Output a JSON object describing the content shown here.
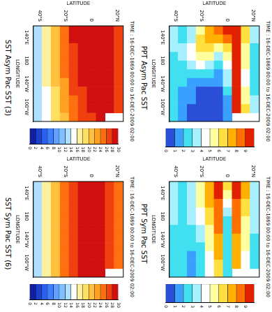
{
  "chart_data": [
    {
      "type": "heatmap",
      "title": "PPT Asym Pac SST",
      "subtitle": "TIME : 16-DEC-1869 00:00 to 16-DEC-2009 02:00",
      "x_label": "LONGITUDE",
      "y_label": "LATITUDE",
      "xlim": [
        120,
        285
      ],
      "ylim": [
        -45,
        25
      ],
      "xticks": [
        {
          "value": 140,
          "label": "140°E"
        },
        180,
        {
          "value": 220,
          "label": "140°W"
        },
        {
          "value": 260,
          "label": "100°W"
        }
      ],
      "yticks": [
        {
          "value": -40,
          "label": "40°S"
        },
        {
          "value": -20,
          "label": "20°S"
        },
        0,
        {
          "value": 20,
          "label": "20°N"
        }
      ],
      "grid": false,
      "x_edges": [
        120,
        135,
        150,
        165,
        180,
        195,
        210,
        225,
        240,
        255,
        270,
        285
      ],
      "y_edges": [
        -45,
        -38,
        -31,
        -24,
        -17,
        -10,
        -3,
        4,
        11,
        18,
        25
      ],
      "cells": [
        [
          3,
          3,
          3,
          2,
          2,
          2,
          2,
          2,
          2,
          2,
          2
        ],
        [
          2,
          2,
          3,
          3,
          2,
          2,
          2,
          1,
          1,
          1,
          1
        ],
        [
          3,
          3,
          4,
          4,
          3,
          2,
          1,
          1,
          1,
          0,
          0
        ],
        [
          5,
          6,
          6,
          5,
          4,
          2,
          1,
          0,
          0,
          0,
          0
        ],
        [
          7,
          7,
          6,
          5,
          3,
          2,
          1,
          0,
          0,
          0,
          0
        ],
        [
          8,
          7,
          5,
          3,
          2,
          1,
          1,
          0,
          0,
          0,
          0
        ],
        [
          9,
          8,
          6,
          5,
          4,
          3,
          3,
          2,
          1,
          1,
          1
        ],
        [
          9,
          9,
          9,
          9,
          9,
          10,
          10,
          10,
          10,
          9,
          null
        ],
        [
          6,
          6,
          5,
          5,
          5,
          4,
          4,
          5,
          5,
          6,
          null
        ],
        [
          3,
          3,
          2,
          2,
          2,
          2,
          2,
          2,
          3,
          3,
          null
        ]
      ],
      "colorbar": {
        "range": [
          0,
          10
        ],
        "ticks": [
          0,
          1,
          2,
          3,
          4,
          5,
          6,
          7,
          8,
          9
        ],
        "colors": [
          "#2a4fd6",
          "#3aa0ff",
          "#40e0f0",
          "#a8f0ff",
          "#ffffff",
          "#ffffa0",
          "#ffe040",
          "#ffb000",
          "#ff7000",
          "#e02000"
        ]
      }
    },
    {
      "type": "heatmap",
      "title": "PPT Sym Pac SST",
      "subtitle": "TIME : 16-DEC-1869 00:00 to 16-DEC-2009 02:00",
      "x_label": "LONGITUDE",
      "y_label": "LATITUDE",
      "xlim": [
        120,
        285
      ],
      "ylim": [
        -45,
        25
      ],
      "xticks": [
        {
          "value": 140,
          "label": "140°E"
        },
        180,
        {
          "value": 220,
          "label": "140°W"
        },
        {
          "value": 260,
          "label": "100°W"
        }
      ],
      "yticks": [
        {
          "value": -40,
          "label": "40°S"
        },
        {
          "value": -20,
          "label": "20°S"
        },
        0,
        {
          "value": 20,
          "label": "20°N"
        }
      ],
      "grid": false,
      "x_edges": [
        120,
        135,
        150,
        165,
        180,
        195,
        210,
        225,
        240,
        255,
        270,
        285
      ],
      "y_edges": [
        -45,
        -38,
        -31,
        -24,
        -17,
        -10,
        -3,
        4,
        11,
        18,
        25
      ],
      "cells": [
        [
          3,
          3,
          3,
          3,
          3,
          2,
          2,
          2,
          2,
          2,
          2
        ],
        [
          2,
          2,
          2,
          2,
          2,
          2,
          2,
          2,
          2,
          2,
          2
        ],
        [
          3,
          3,
          3,
          3,
          3,
          2,
          2,
          2,
          1,
          1,
          1
        ],
        [
          5,
          5,
          5,
          4,
          4,
          3,
          3,
          2,
          2,
          2,
          2
        ],
        [
          7,
          7,
          7,
          6,
          6,
          5,
          5,
          5,
          4,
          4,
          4
        ],
        [
          9,
          9,
          8,
          8,
          8,
          8,
          7,
          7,
          7,
          6,
          6
        ],
        [
          6,
          5,
          4,
          3,
          2,
          2,
          2,
          2,
          2,
          2,
          2
        ],
        [
          9,
          9,
          8,
          8,
          8,
          8,
          7,
          7,
          7,
          7,
          null
        ],
        [
          7,
          7,
          6,
          6,
          5,
          5,
          5,
          5,
          4,
          4,
          null
        ],
        [
          3,
          3,
          3,
          3,
          3,
          3,
          2,
          2,
          2,
          2,
          null
        ]
      ],
      "colorbar": {
        "range": [
          0,
          10
        ],
        "ticks": [
          0,
          1,
          2,
          3,
          4,
          5,
          6,
          7,
          8,
          9
        ],
        "colors": [
          "#2a4fd6",
          "#3aa0ff",
          "#40e0f0",
          "#a8f0ff",
          "#ffffff",
          "#ffffa0",
          "#ffe040",
          "#ffb000",
          "#ff7000",
          "#e02000"
        ]
      }
    },
    {
      "type": "heatmap",
      "title": "SST Asym Pac SST (3)",
      "subtitle": "TIME : 16-DEC-1869 00:00 to 16-DEC-2009 02:00",
      "x_label": "LONGITUDE",
      "y_label": "LATITUDE",
      "xlim": [
        120,
        285
      ],
      "ylim": [
        -45,
        25
      ],
      "xticks": [
        {
          "value": 140,
          "label": "140°E"
        },
        180,
        {
          "value": 220,
          "label": "140°W"
        },
        {
          "value": 260,
          "label": "100°W"
        }
      ],
      "yticks": [
        {
          "value": -40,
          "label": "40°S"
        },
        {
          "value": -20,
          "label": "20°S"
        },
        0,
        {
          "value": 20,
          "label": "20°N"
        }
      ],
      "grid": false,
      "x_edges": [
        120,
        135,
        150,
        165,
        180,
        195,
        210,
        225,
        240,
        255,
        270,
        285
      ],
      "y_edges": [
        -45,
        -38,
        -31,
        -24,
        -17,
        -10,
        -3,
        4,
        11,
        18,
        25
      ],
      "cells": [
        [
          13,
          13,
          12,
          12,
          12,
          12,
          12,
          12,
          12,
          12,
          12
        ],
        [
          17,
          17,
          16,
          16,
          16,
          16,
          16,
          15,
          15,
          15,
          15
        ],
        [
          21,
          21,
          21,
          20,
          20,
          20,
          20,
          19,
          19,
          19,
          18
        ],
        [
          25,
          25,
          24,
          24,
          24,
          24,
          23,
          23,
          22,
          22,
          21
        ],
        [
          28,
          28,
          27,
          27,
          27,
          26,
          26,
          26,
          25,
          25,
          24
        ],
        [
          29,
          29,
          29,
          28,
          28,
          28,
          28,
          27,
          27,
          27,
          26
        ],
        [
          29,
          29,
          29,
          29,
          29,
          29,
          28,
          28,
          28,
          28,
          27
        ],
        [
          29,
          29,
          29,
          29,
          29,
          29,
          29,
          29,
          29,
          29,
          29
        ],
        [
          28,
          28,
          28,
          28,
          28,
          28,
          28,
          28,
          28,
          28,
          null
        ],
        [
          26,
          26,
          26,
          26,
          26,
          26,
          26,
          26,
          26,
          27,
          null
        ]
      ],
      "colorbar": {
        "range": [
          0,
          30
        ],
        "ticks": [
          0,
          2,
          4,
          6,
          8,
          10,
          12,
          14,
          16,
          18,
          20,
          22,
          24,
          26,
          28,
          30
        ],
        "colors": [
          "#1020a0",
          "#1a40d0",
          "#2a60f0",
          "#4080ff",
          "#60a0ff",
          "#80c0ff",
          "#b0e0ff",
          "#ffffff",
          "#fff0a0",
          "#ffe060",
          "#ffc040",
          "#ffa020",
          "#ff7010",
          "#f04010",
          "#d01010"
        ]
      }
    },
    {
      "type": "heatmap",
      "title": "SST Sym Pac SST (6)",
      "subtitle": "TIME : 16-DEC-1869 00:00 to 16-DEC-2009 02:00",
      "x_label": "LONGITUDE",
      "y_label": "LATITUDE",
      "xlim": [
        120,
        285
      ],
      "ylim": [
        -45,
        25
      ],
      "xticks": [
        {
          "value": 140,
          "label": "140°E"
        },
        180,
        {
          "value": 220,
          "label": "140°W"
        },
        {
          "value": 260,
          "label": "100°W"
        }
      ],
      "yticks": [
        {
          "value": -40,
          "label": "40°S"
        },
        {
          "value": -20,
          "label": "20°S"
        },
        0,
        {
          "value": 20,
          "label": "20°N"
        }
      ],
      "grid": false,
      "x_edges": [
        120,
        135,
        150,
        165,
        180,
        195,
        210,
        225,
        240,
        255,
        270,
        285
      ],
      "y_edges": [
        -45,
        -38,
        -31,
        -24,
        -17,
        -10,
        -3,
        4,
        11,
        18,
        25
      ],
      "cells": [
        [
          13,
          13,
          13,
          12,
          12,
          12,
          12,
          12,
          12,
          12,
          12
        ],
        [
          17,
          17,
          17,
          16,
          16,
          16,
          16,
          16,
          16,
          16,
          16
        ],
        [
          21,
          21,
          21,
          21,
          20,
          20,
          20,
          20,
          20,
          20,
          20
        ],
        [
          25,
          25,
          25,
          24,
          24,
          24,
          24,
          24,
          24,
          24,
          24
        ],
        [
          27,
          27,
          27,
          27,
          27,
          27,
          27,
          27,
          27,
          27,
          27
        ],
        [
          28,
          28,
          28,
          28,
          28,
          28,
          28,
          28,
          28,
          28,
          28
        ],
        [
          29,
          29,
          29,
          29,
          29,
          29,
          29,
          29,
          29,
          29,
          28
        ],
        [
          28,
          28,
          28,
          28,
          28,
          28,
          28,
          28,
          28,
          28,
          28
        ],
        [
          27,
          27,
          27,
          27,
          27,
          27,
          27,
          27,
          27,
          27,
          null
        ],
        [
          25,
          25,
          25,
          25,
          25,
          25,
          25,
          25,
          25,
          25,
          null
        ]
      ],
      "colorbar": {
        "range": [
          0,
          30
        ],
        "ticks": [
          0,
          2,
          4,
          6,
          8,
          10,
          12,
          14,
          16,
          18,
          20,
          22,
          24,
          26,
          28,
          30
        ],
        "colors": [
          "#1020a0",
          "#1a40d0",
          "#2a60f0",
          "#4080ff",
          "#60a0ff",
          "#80c0ff",
          "#b0e0ff",
          "#ffffff",
          "#fff0a0",
          "#ffe060",
          "#ffc040",
          "#ffa020",
          "#ff7010",
          "#f04010",
          "#d01010"
        ]
      }
    }
  ]
}
